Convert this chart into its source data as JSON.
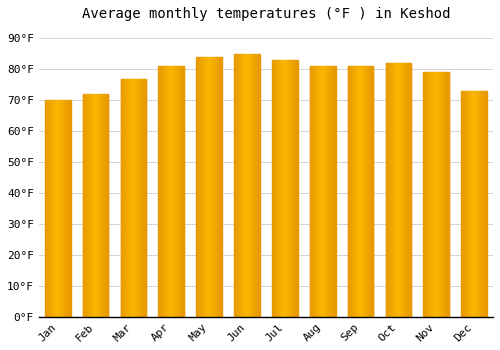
{
  "title": "Average monthly temperatures (°F ) in Keshod",
  "months": [
    "Jan",
    "Feb",
    "Mar",
    "Apr",
    "May",
    "Jun",
    "Jul",
    "Aug",
    "Sep",
    "Oct",
    "Nov",
    "Dec"
  ],
  "values": [
    70,
    72,
    77,
    81,
    84,
    85,
    83,
    81,
    81,
    82,
    79,
    73
  ],
  "bar_color_center": "#FDB92E",
  "bar_color_edge": "#F5A800",
  "bar_color_side_dark": "#E89B00",
  "background_color": "#FFFFFF",
  "grid_color": "#CCCCCC",
  "yticks": [
    0,
    10,
    20,
    30,
    40,
    50,
    60,
    70,
    80,
    90
  ],
  "ylim": [
    0,
    93
  ],
  "title_fontsize": 10,
  "tick_fontsize": 8,
  "font_family": "monospace",
  "bar_width": 0.68
}
